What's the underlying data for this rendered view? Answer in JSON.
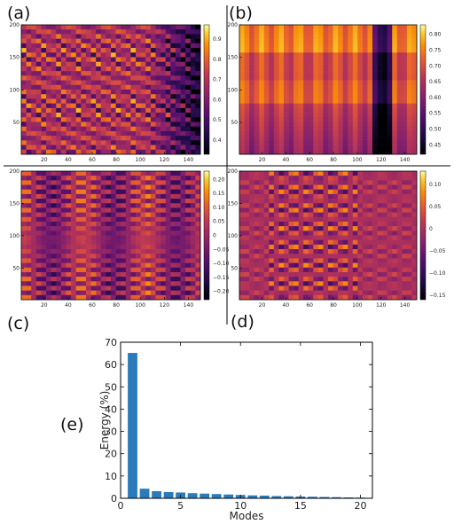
{
  "panel_labels": [
    "(a)",
    "(b)",
    "(c)",
    "(d)",
    "(e)"
  ],
  "chart_data": [
    {
      "panel": "(a)",
      "type": "heatmap",
      "colormap": "inferno",
      "x_ticks": [
        "20",
        "40",
        "60",
        "80",
        "100",
        "120",
        "140"
      ],
      "y_ticks": [
        "50",
        "100",
        "150",
        "200"
      ],
      "colorbar_ticks": [
        "0.4",
        "0.5",
        "0.6",
        "0.7",
        "0.8",
        "0.9"
      ],
      "xlim": [
        1,
        150
      ],
      "ylim": [
        1,
        200
      ],
      "clim": [
        0.33,
        0.97
      ]
    },
    {
      "panel": "(b)",
      "type": "heatmap",
      "colormap": "inferno",
      "x_ticks": [
        "20",
        "40",
        "60",
        "80",
        "100",
        "120",
        "140"
      ],
      "y_ticks": [
        "50",
        "100",
        "150",
        "200"
      ],
      "colorbar_ticks": [
        "0.45",
        "0.50",
        "0.55",
        "0.60",
        "0.65",
        "0.70",
        "0.75",
        "0.80"
      ],
      "xlim": [
        1,
        150
      ],
      "ylim": [
        1,
        200
      ],
      "clim": [
        0.42,
        0.83
      ]
    },
    {
      "panel": "(c)",
      "type": "heatmap",
      "colormap": "inferno",
      "x_ticks": [
        "20",
        "40",
        "60",
        "80",
        "100",
        "120",
        "140"
      ],
      "y_ticks": [
        "50",
        "100",
        "150",
        "200"
      ],
      "colorbar_ticks": [
        "0.20",
        "0.15",
        "0.10",
        "0.05",
        "0",
        "−0.05",
        "−0.10",
        "−0.15",
        "−0.20"
      ],
      "xlim": [
        1,
        150
      ],
      "ylim": [
        1,
        200
      ],
      "clim": [
        -0.23,
        0.23
      ]
    },
    {
      "panel": "(d)",
      "type": "heatmap",
      "colormap": "inferno",
      "x_ticks": [
        "20",
        "40",
        "60",
        "80",
        "100",
        "120",
        "140"
      ],
      "y_ticks": [
        "50",
        "100",
        "150",
        "200"
      ],
      "colorbar_ticks": [
        "0.10",
        "0.05",
        "0",
        "−0.05",
        "−0.10",
        "−0.15"
      ],
      "xlim": [
        1,
        150
      ],
      "ylim": [
        1,
        200
      ],
      "clim": [
        -0.16,
        0.13
      ]
    },
    {
      "panel": "(e)",
      "type": "bar",
      "x": [
        1,
        2,
        3,
        4,
        5,
        6,
        7,
        8,
        9,
        10,
        11,
        12,
        13,
        14,
        15,
        16,
        17,
        18,
        19,
        20
      ],
      "values": [
        65.2,
        4.3,
        3.2,
        2.8,
        2.6,
        2.3,
        2.1,
        1.9,
        1.7,
        1.5,
        1.3,
        1.2,
        1.0,
        0.9,
        0.8,
        0.7,
        0.6,
        0.5,
        0.4,
        0.3
      ],
      "xlabel": "Modes",
      "ylabel": "Energy (%)",
      "xlim": [
        0,
        21
      ],
      "ylim": [
        0,
        70
      ],
      "x_ticks": [
        "0",
        "5",
        "10",
        "15",
        "20"
      ],
      "y_ticks": [
        "0",
        "10",
        "20",
        "30",
        "40",
        "50",
        "60",
        "70"
      ],
      "bar_color": "#2b7bba"
    }
  ]
}
